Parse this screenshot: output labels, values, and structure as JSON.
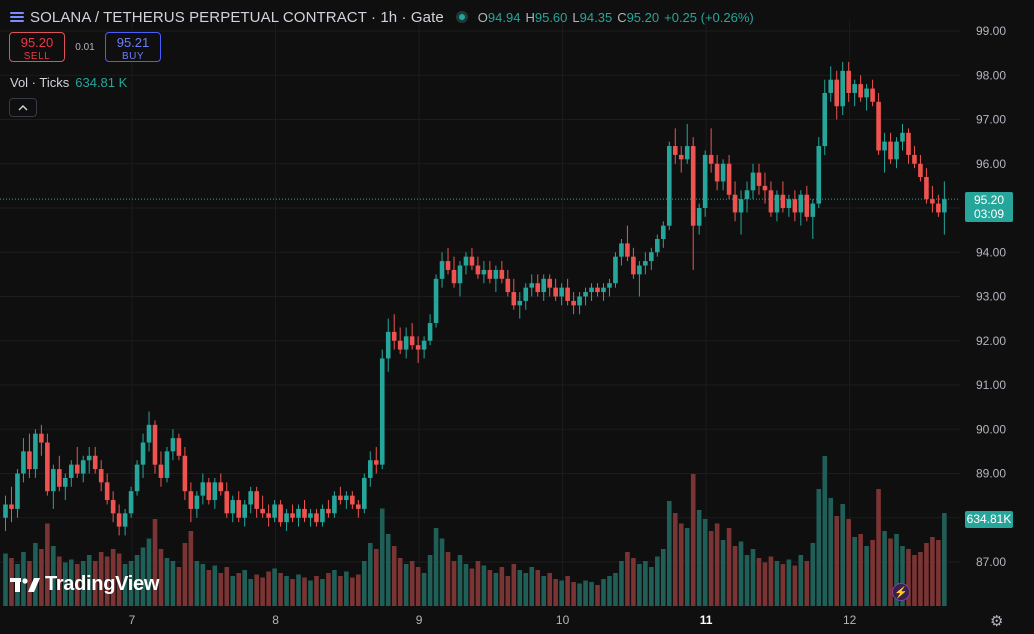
{
  "header": {
    "symbol_title": "SOLANA / TETHERUS PERPETUAL CONTRACT · 1h · Gate",
    "ohlc": {
      "o_label": "O",
      "o": "94.94",
      "h_label": "H",
      "h": "95.60",
      "l_label": "L",
      "l": "94.35",
      "c_label": "C",
      "c": "95.20",
      "change": "+0.25 (+0.26%)"
    }
  },
  "trade": {
    "sell_price": "95.20",
    "sell_label": "SELL",
    "spread": "0.01",
    "buy_price": "95.21",
    "buy_label": "BUY"
  },
  "volume_legend": {
    "label": "Vol · Ticks",
    "value": "634.81 K"
  },
  "price_tag": {
    "price": "95.20",
    "countdown": "03:09"
  },
  "volume_tag": "634.81K",
  "branding": "TradingView",
  "icons": {
    "symbol": "symbol-list-icon",
    "status": "market-open-dot-icon",
    "collapse": "chevron-up-icon",
    "logo": "tradingview-logo-icon",
    "bolt": "lightning-icon",
    "settings": "gear-icon"
  },
  "colors": {
    "up": "#26a69a",
    "down": "#ef5350",
    "background": "#0f0f0f"
  },
  "chart_data": {
    "type": "candlestick",
    "interval": "1h",
    "yticks": [
      "87.00",
      "88.00",
      "89.00",
      "90.00",
      "91.00",
      "92.00",
      "93.00",
      "94.00",
      "95.00",
      "96.00",
      "97.00",
      "98.00",
      "99.00"
    ],
    "ylim": [
      86.1,
      99.3
    ],
    "xticks": [
      {
        "label": "7",
        "index": 24,
        "bold": false
      },
      {
        "label": "8",
        "index": 48,
        "bold": false
      },
      {
        "label": "9",
        "index": 72,
        "bold": false
      },
      {
        "label": "10",
        "index": 96,
        "bold": false
      },
      {
        "label": "11",
        "index": 120,
        "bold": true
      },
      {
        "label": "12",
        "index": 144,
        "bold": false
      }
    ],
    "last_price": 95.2,
    "ohlc": [
      [
        88.0,
        88.5,
        87.7,
        88.3
      ],
      [
        88.3,
        88.7,
        87.9,
        88.2
      ],
      [
        88.2,
        89.1,
        88.0,
        89.0
      ],
      [
        89.0,
        89.8,
        88.8,
        89.5
      ],
      [
        89.5,
        89.9,
        88.9,
        89.1
      ],
      [
        89.1,
        90.0,
        88.9,
        89.9
      ],
      [
        89.9,
        90.1,
        89.4,
        89.7
      ],
      [
        89.7,
        89.9,
        88.5,
        88.6
      ],
      [
        88.6,
        89.2,
        88.2,
        89.1
      ],
      [
        89.1,
        89.4,
        88.6,
        88.7
      ],
      [
        88.7,
        89.0,
        88.4,
        88.9
      ],
      [
        88.9,
        89.3,
        88.7,
        89.2
      ],
      [
        89.2,
        89.6,
        88.9,
        89.0
      ],
      [
        89.0,
        89.4,
        88.8,
        89.3
      ],
      [
        89.3,
        89.6,
        89.0,
        89.4
      ],
      [
        89.4,
        89.6,
        89.0,
        89.1
      ],
      [
        89.1,
        89.3,
        88.6,
        88.8
      ],
      [
        88.8,
        89.0,
        88.3,
        88.4
      ],
      [
        88.4,
        88.6,
        87.9,
        88.1
      ],
      [
        88.1,
        88.3,
        87.6,
        87.8
      ],
      [
        87.8,
        88.2,
        87.6,
        88.1
      ],
      [
        88.1,
        88.7,
        88.0,
        88.6
      ],
      [
        88.6,
        89.3,
        88.5,
        89.2
      ],
      [
        89.2,
        89.9,
        88.9,
        89.7
      ],
      [
        89.7,
        90.4,
        89.5,
        90.1
      ],
      [
        90.1,
        90.2,
        89.0,
        89.2
      ],
      [
        89.2,
        89.5,
        88.7,
        88.9
      ],
      [
        88.9,
        89.6,
        88.8,
        89.5
      ],
      [
        89.5,
        90.0,
        89.3,
        89.8
      ],
      [
        89.8,
        89.9,
        89.3,
        89.4
      ],
      [
        89.4,
        89.6,
        88.4,
        88.6
      ],
      [
        88.6,
        88.8,
        87.9,
        88.2
      ],
      [
        88.2,
        88.6,
        88.0,
        88.5
      ],
      [
        88.5,
        89.0,
        88.3,
        88.8
      ],
      [
        88.8,
        88.9,
        88.3,
        88.4
      ],
      [
        88.4,
        88.9,
        88.2,
        88.8
      ],
      [
        88.8,
        89.0,
        88.5,
        88.6
      ],
      [
        88.6,
        88.8,
        88.0,
        88.1
      ],
      [
        88.1,
        88.5,
        87.9,
        88.4
      ],
      [
        88.4,
        88.6,
        87.9,
        88.0
      ],
      [
        88.0,
        88.4,
        87.8,
        88.3
      ],
      [
        88.3,
        88.7,
        88.1,
        88.6
      ],
      [
        88.6,
        88.7,
        88.0,
        88.2
      ],
      [
        88.2,
        88.5,
        88.0,
        88.1
      ],
      [
        88.1,
        88.3,
        87.8,
        88.0
      ],
      [
        88.0,
        88.4,
        87.9,
        88.3
      ],
      [
        88.3,
        88.4,
        87.8,
        87.9
      ],
      [
        87.9,
        88.2,
        87.7,
        88.1
      ],
      [
        88.1,
        88.3,
        87.9,
        88.0
      ],
      [
        88.0,
        88.3,
        87.8,
        88.2
      ],
      [
        88.2,
        88.4,
        87.9,
        88.0
      ],
      [
        88.0,
        88.2,
        87.8,
        88.1
      ],
      [
        88.1,
        88.2,
        87.8,
        87.9
      ],
      [
        87.9,
        88.3,
        87.8,
        88.2
      ],
      [
        88.2,
        88.4,
        88.0,
        88.1
      ],
      [
        88.1,
        88.6,
        88.0,
        88.5
      ],
      [
        88.5,
        88.7,
        88.3,
        88.4
      ],
      [
        88.4,
        88.6,
        88.2,
        88.5
      ],
      [
        88.5,
        88.6,
        88.2,
        88.3
      ],
      [
        88.3,
        88.4,
        88.0,
        88.2
      ],
      [
        88.2,
        89.0,
        88.1,
        88.9
      ],
      [
        88.9,
        89.5,
        88.7,
        89.3
      ],
      [
        89.3,
        89.6,
        89.0,
        89.2
      ],
      [
        89.2,
        91.8,
        89.1,
        91.6
      ],
      [
        91.6,
        92.5,
        91.3,
        92.2
      ],
      [
        92.2,
        92.6,
        91.8,
        92.0
      ],
      [
        92.0,
        92.3,
        91.7,
        91.8
      ],
      [
        91.8,
        92.3,
        91.6,
        92.1
      ],
      [
        92.1,
        92.4,
        91.8,
        91.9
      ],
      [
        91.9,
        92.1,
        91.5,
        91.8
      ],
      [
        91.8,
        92.1,
        91.6,
        92.0
      ],
      [
        92.0,
        92.6,
        91.9,
        92.4
      ],
      [
        92.4,
        93.5,
        92.3,
        93.4
      ],
      [
        93.4,
        94.0,
        93.2,
        93.8
      ],
      [
        93.8,
        94.1,
        93.5,
        93.6
      ],
      [
        93.6,
        93.9,
        93.2,
        93.3
      ],
      [
        93.3,
        93.8,
        93.0,
        93.7
      ],
      [
        93.7,
        94.0,
        93.5,
        93.9
      ],
      [
        93.9,
        94.1,
        93.6,
        93.7
      ],
      [
        93.7,
        93.9,
        93.4,
        93.5
      ],
      [
        93.5,
        93.8,
        93.3,
        93.6
      ],
      [
        93.6,
        93.8,
        93.3,
        93.4
      ],
      [
        93.4,
        93.7,
        93.1,
        93.6
      ],
      [
        93.6,
        93.8,
        93.3,
        93.4
      ],
      [
        93.4,
        93.6,
        93.0,
        93.1
      ],
      [
        93.1,
        93.4,
        92.7,
        92.8
      ],
      [
        92.8,
        93.1,
        92.5,
        92.9
      ],
      [
        92.9,
        93.3,
        92.7,
        93.2
      ],
      [
        93.2,
        93.5,
        93.0,
        93.3
      ],
      [
        93.3,
        93.5,
        93.0,
        93.1
      ],
      [
        93.1,
        93.5,
        92.9,
        93.4
      ],
      [
        93.4,
        93.5,
        93.0,
        93.2
      ],
      [
        93.2,
        93.4,
        92.9,
        93.0
      ],
      [
        93.0,
        93.3,
        92.8,
        93.2
      ],
      [
        93.2,
        93.4,
        92.8,
        92.9
      ],
      [
        92.9,
        93.1,
        92.6,
        92.8
      ],
      [
        92.8,
        93.1,
        92.6,
        93.0
      ],
      [
        93.0,
        93.2,
        92.8,
        93.1
      ],
      [
        93.1,
        93.3,
        92.9,
        93.2
      ],
      [
        93.2,
        93.3,
        93.0,
        93.1
      ],
      [
        93.1,
        93.3,
        92.9,
        93.2
      ],
      [
        93.2,
        93.4,
        93.0,
        93.3
      ],
      [
        93.3,
        94.0,
        93.2,
        93.9
      ],
      [
        93.9,
        94.3,
        93.7,
        94.2
      ],
      [
        94.2,
        94.6,
        93.8,
        93.9
      ],
      [
        93.9,
        94.1,
        93.4,
        93.5
      ],
      [
        93.5,
        93.8,
        93.0,
        93.7
      ],
      [
        93.7,
        94.0,
        93.5,
        93.8
      ],
      [
        93.8,
        94.1,
        93.6,
        94.0
      ],
      [
        94.0,
        94.4,
        93.9,
        94.3
      ],
      [
        94.3,
        94.7,
        94.1,
        94.6
      ],
      [
        94.6,
        96.5,
        94.5,
        96.4
      ],
      [
        96.4,
        96.8,
        96.0,
        96.2
      ],
      [
        96.2,
        96.4,
        95.8,
        96.1
      ],
      [
        96.1,
        96.9,
        96.0,
        96.4
      ],
      [
        96.4,
        96.6,
        93.6,
        94.6
      ],
      [
        94.6,
        95.1,
        94.4,
        95.0
      ],
      [
        95.0,
        96.3,
        94.8,
        96.2
      ],
      [
        96.2,
        96.8,
        95.8,
        96.0
      ],
      [
        96.0,
        96.2,
        95.4,
        95.6
      ],
      [
        95.6,
        96.1,
        95.4,
        96.0
      ],
      [
        96.0,
        96.2,
        95.2,
        95.3
      ],
      [
        95.3,
        95.6,
        94.7,
        94.9
      ],
      [
        94.9,
        95.4,
        94.4,
        95.2
      ],
      [
        95.2,
        95.6,
        94.9,
        95.4
      ],
      [
        95.4,
        96.0,
        95.2,
        95.8
      ],
      [
        95.8,
        96.0,
        95.3,
        95.5
      ],
      [
        95.5,
        95.8,
        95.1,
        95.4
      ],
      [
        95.4,
        95.6,
        94.8,
        94.9
      ],
      [
        94.9,
        95.4,
        94.7,
        95.3
      ],
      [
        95.3,
        95.6,
        94.9,
        95.0
      ],
      [
        95.0,
        95.3,
        94.8,
        95.2
      ],
      [
        95.2,
        95.4,
        94.7,
        94.9
      ],
      [
        94.9,
        95.4,
        94.6,
        95.3
      ],
      [
        95.3,
        95.5,
        94.7,
        94.8
      ],
      [
        94.8,
        95.2,
        94.3,
        95.1
      ],
      [
        95.1,
        96.6,
        95.0,
        96.4
      ],
      [
        96.4,
        97.9,
        96.2,
        97.6
      ],
      [
        97.6,
        98.2,
        97.4,
        97.9
      ],
      [
        97.9,
        98.1,
        97.0,
        97.3
      ],
      [
        97.3,
        98.3,
        97.1,
        98.1
      ],
      [
        98.1,
        98.3,
        97.4,
        97.6
      ],
      [
        97.6,
        97.9,
        97.3,
        97.8
      ],
      [
        97.8,
        98.0,
        97.4,
        97.5
      ],
      [
        97.5,
        97.8,
        97.2,
        97.7
      ],
      [
        97.7,
        97.9,
        97.3,
        97.4
      ],
      [
        97.4,
        97.6,
        96.2,
        96.3
      ],
      [
        96.3,
        96.7,
        95.8,
        96.5
      ],
      [
        96.5,
        96.7,
        96.0,
        96.1
      ],
      [
        96.1,
        96.6,
        95.9,
        96.5
      ],
      [
        96.5,
        96.9,
        96.3,
        96.7
      ],
      [
        96.7,
        96.8,
        96.0,
        96.2
      ],
      [
        96.2,
        96.4,
        95.9,
        96.0
      ],
      [
        96.0,
        96.2,
        95.6,
        95.7
      ],
      [
        95.7,
        95.9,
        95.1,
        95.2
      ],
      [
        95.2,
        95.5,
        94.9,
        95.1
      ],
      [
        95.1,
        95.3,
        94.8,
        94.9
      ],
      [
        94.9,
        95.6,
        94.4,
        95.2
      ]
    ],
    "volume": [
      0.35,
      0.32,
      0.28,
      0.36,
      0.3,
      0.42,
      0.38,
      0.55,
      0.4,
      0.33,
      0.29,
      0.31,
      0.28,
      0.3,
      0.34,
      0.3,
      0.36,
      0.33,
      0.38,
      0.35,
      0.28,
      0.3,
      0.34,
      0.39,
      0.45,
      0.58,
      0.38,
      0.32,
      0.3,
      0.26,
      0.42,
      0.5,
      0.3,
      0.28,
      0.24,
      0.27,
      0.22,
      0.26,
      0.2,
      0.22,
      0.24,
      0.18,
      0.21,
      0.19,
      0.23,
      0.25,
      0.22,
      0.2,
      0.18,
      0.21,
      0.19,
      0.17,
      0.2,
      0.18,
      0.22,
      0.24,
      0.2,
      0.23,
      0.19,
      0.21,
      0.3,
      0.42,
      0.38,
      0.65,
      0.48,
      0.4,
      0.32,
      0.28,
      0.3,
      0.26,
      0.22,
      0.34,
      0.52,
      0.45,
      0.36,
      0.3,
      0.34,
      0.28,
      0.25,
      0.3,
      0.27,
      0.24,
      0.22,
      0.26,
      0.2,
      0.28,
      0.24,
      0.22,
      0.26,
      0.24,
      0.2,
      0.22,
      0.18,
      0.17,
      0.2,
      0.16,
      0.15,
      0.17,
      0.16,
      0.14,
      0.18,
      0.2,
      0.22,
      0.3,
      0.36,
      0.32,
      0.28,
      0.3,
      0.26,
      0.33,
      0.38,
      0.7,
      0.62,
      0.55,
      0.52,
      0.88,
      0.64,
      0.58,
      0.5,
      0.55,
      0.44,
      0.52,
      0.4,
      0.43,
      0.34,
      0.38,
      0.32,
      0.29,
      0.33,
      0.3,
      0.28,
      0.31,
      0.27,
      0.34,
      0.3,
      0.42,
      0.78,
      1.0,
      0.72,
      0.6,
      0.68,
      0.58,
      0.46,
      0.48,
      0.4,
      0.44,
      0.78,
      0.5,
      0.45,
      0.48,
      0.4,
      0.38,
      0.34,
      0.36,
      0.42,
      0.46,
      0.44,
      0.62
    ]
  }
}
